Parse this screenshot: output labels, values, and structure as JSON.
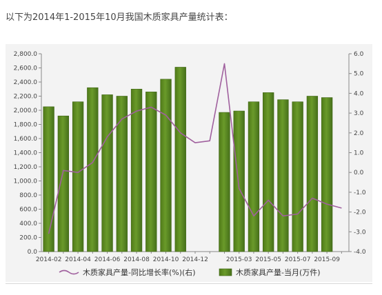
{
  "intro_text": "以下为2014年1-2015年10月我国木质家具产量统计表：",
  "chart_data": {
    "type": "bar",
    "categories": [
      "2014-02",
      "2014-03",
      "2014-04",
      "2014-05",
      "2014-06",
      "2014-07",
      "2014-08",
      "2014-09",
      "2014-10",
      "2014-11",
      "2014-12",
      "2015-01",
      "2015-02",
      "2015-03",
      "2015-04",
      "2015-05",
      "2015-06",
      "2015-07",
      "2015-08",
      "2015-09",
      "2015-10"
    ],
    "x_tick_labels": [
      "2014-02",
      "2014-04",
      "2014-06",
      "2014-08",
      "2014-10",
      "2014-12",
      "2015-03",
      "2015-05",
      "2015-07",
      "2015-09"
    ],
    "series": [
      {
        "name": "木质家具产量-当月(万件)",
        "type": "bar",
        "axis": "left",
        "color": "#6a9a2a",
        "values": [
          2050,
          1920,
          2120,
          2320,
          2220,
          2200,
          2300,
          2260,
          2440,
          2610,
          null,
          null,
          1970,
          1990,
          2120,
          2250,
          2150,
          2120,
          2200,
          2180,
          null
        ]
      },
      {
        "name": "木质家具产量-同比增长率(%)(右)",
        "type": "line",
        "axis": "right",
        "color": "#a0609e",
        "x_index": [
          0,
          1,
          2,
          3,
          4,
          5,
          6,
          7,
          8,
          9,
          10,
          11,
          12,
          13,
          14,
          15,
          16,
          17,
          18,
          19,
          20
        ],
        "values": [
          -3.1,
          0.1,
          0.0,
          0.5,
          1.8,
          2.7,
          3.1,
          3.3,
          2.9,
          2.0,
          1.5,
          1.6,
          5.5,
          -0.8,
          -2.2,
          -1.4,
          -2.2,
          -2.1,
          -1.3,
          -1.6,
          -1.8
        ]
      }
    ],
    "left_axis": {
      "min": 0,
      "max": 2800,
      "step": 200,
      "tick_labels": [
        "0.0",
        "200.0",
        "400.0",
        "600.0",
        "800.0",
        "1,000.0",
        "1,200.0",
        "1,400.0",
        "1,600.0",
        "1,800.0",
        "2,000.0",
        "2,200.0",
        "2,400.0",
        "2,600.0",
        "2,800.0"
      ]
    },
    "right_axis": {
      "min": -4,
      "max": 6,
      "step": 1,
      "tick_labels": [
        "-4.0",
        "-3.0",
        "-2.0",
        "-1.0",
        "0.0",
        "1.0",
        "2.0",
        "3.0",
        "4.0",
        "5.0",
        "6.0"
      ]
    },
    "grid": false,
    "legend_position": "bottom",
    "legend": [
      "木质家具产量-同比增长率(%)(右)",
      "木质家具产量-当月(万件)"
    ]
  },
  "colors": {
    "bar": "#6a9a2a",
    "line": "#a0609e",
    "panel_background": "#f3f3f3"
  }
}
